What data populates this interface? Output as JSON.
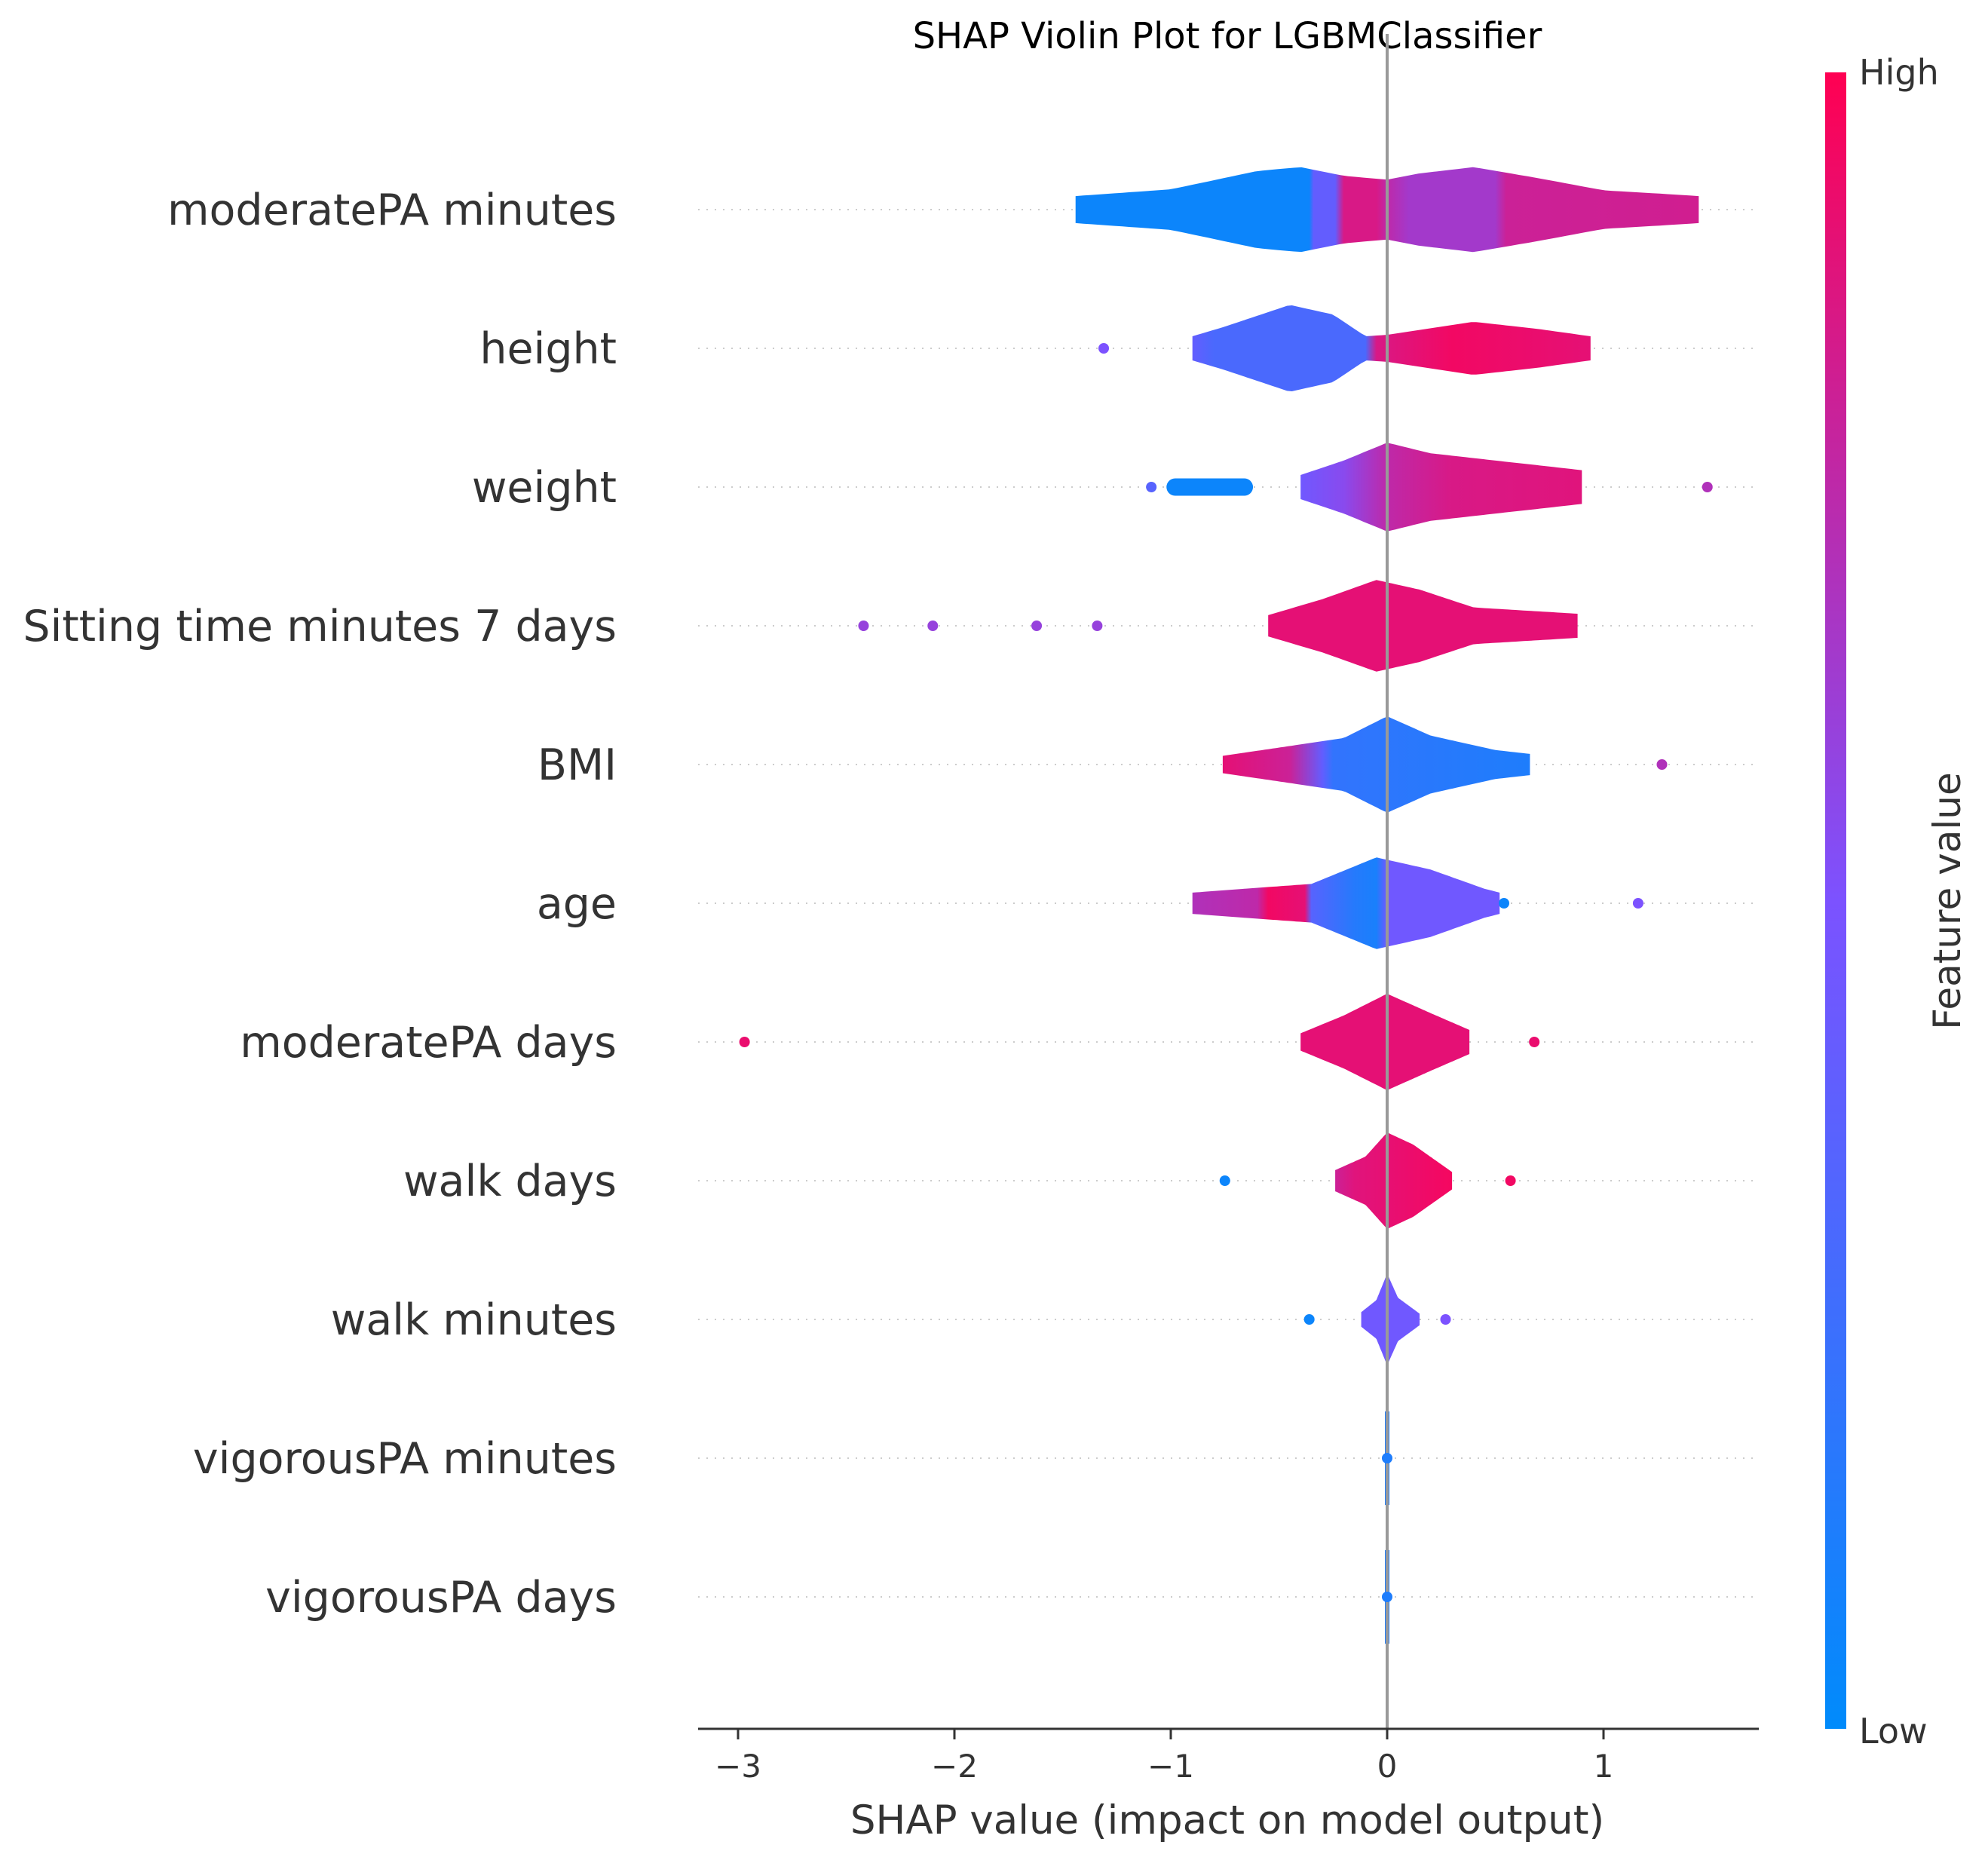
{
  "colors": {
    "low": "#008bfb",
    "mid": "#7c52ff",
    "high": "#ff0052",
    "grid": "#cccccc",
    "zero_line": "#999999",
    "axis": "#333333"
  },
  "chart_data": {
    "type": "violin",
    "title": "SHAP Violin Plot for LGBMClassifier",
    "xlabel": "SHAP value (impact on model output)",
    "xlim": [
      -3.2,
      1.7
    ],
    "xticks": [
      -3,
      -2,
      -1,
      0,
      1
    ],
    "xtick_labels": [
      "−3",
      "−2",
      "−1",
      "0",
      "1"
    ],
    "colorbar": {
      "label": "Feature value",
      "high_label": "High",
      "low_label": "Low"
    },
    "features": [
      {
        "name": "moderatePA minutes",
        "range": [
          -1.44,
          1.44
        ],
        "density": [
          [
            -1.44,
            0.28
          ],
          [
            -1.0,
            0.42
          ],
          [
            -0.6,
            0.8
          ],
          [
            -0.4,
            0.88
          ],
          [
            -0.2,
            0.7
          ],
          [
            0.0,
            0.62
          ],
          [
            0.15,
            0.75
          ],
          [
            0.4,
            0.88
          ],
          [
            0.7,
            0.65
          ],
          [
            1.0,
            0.4
          ],
          [
            1.3,
            0.32
          ],
          [
            1.44,
            0.28
          ]
        ],
        "color_stops": [
          [
            -1.44,
            0.05
          ],
          [
            -0.36,
            0.05
          ],
          [
            -0.34,
            0.4
          ],
          [
            -0.24,
            0.4
          ],
          [
            -0.2,
            0.85
          ],
          [
            -0.05,
            0.85
          ],
          [
            0.0,
            0.75
          ],
          [
            0.1,
            0.65
          ],
          [
            0.5,
            0.65
          ],
          [
            0.55,
            0.8
          ],
          [
            1.44,
            0.82
          ]
        ],
        "outliers": []
      },
      {
        "name": "height",
        "range": [
          -0.9,
          0.94
        ],
        "density": [
          [
            -0.9,
            0.25
          ],
          [
            -0.75,
            0.45
          ],
          [
            -0.45,
            0.9
          ],
          [
            -0.25,
            0.7
          ],
          [
            -0.1,
            0.25
          ],
          [
            0.0,
            0.28
          ],
          [
            0.4,
            0.55
          ],
          [
            0.7,
            0.4
          ],
          [
            0.94,
            0.25
          ]
        ],
        "color_stops": [
          [
            -0.9,
            0.4
          ],
          [
            -0.8,
            0.3
          ],
          [
            -0.1,
            0.3
          ],
          [
            -0.05,
            0.85
          ],
          [
            0.3,
            0.95
          ],
          [
            0.94,
            0.9
          ]
        ],
        "outliers": [
          {
            "x": -1.31,
            "c": 0.5
          }
        ]
      },
      {
        "name": "weight",
        "range": [
          -0.4,
          0.9
        ],
        "density": [
          [
            -0.4,
            0.25
          ],
          [
            -0.2,
            0.55
          ],
          [
            0.0,
            0.92
          ],
          [
            0.2,
            0.7
          ],
          [
            0.6,
            0.5
          ],
          [
            0.9,
            0.35
          ]
        ],
        "color_stops": [
          [
            -0.4,
            0.45
          ],
          [
            -0.2,
            0.55
          ],
          [
            0.0,
            0.75
          ],
          [
            0.3,
            0.85
          ],
          [
            0.9,
            0.88
          ]
        ],
        "extra_segment": {
          "range": [
            -1.02,
            -0.62
          ],
          "density": 0.18,
          "color": 0.05
        },
        "outliers": [
          {
            "x": -1.09,
            "c": 0.35
          },
          {
            "x": 1.48,
            "c": 0.7
          }
        ]
      },
      {
        "name": "Sitting time minutes 7 days",
        "range": [
          -0.55,
          0.88
        ],
        "density": [
          [
            -0.55,
            0.22
          ],
          [
            -0.3,
            0.55
          ],
          [
            -0.05,
            0.95
          ],
          [
            0.15,
            0.75
          ],
          [
            0.4,
            0.38
          ],
          [
            0.88,
            0.25
          ]
        ],
        "color_stops": [
          [
            -0.55,
            0.9
          ],
          [
            0.88,
            0.9
          ]
        ],
        "outliers": [
          {
            "x": -2.42,
            "c": 0.6
          },
          {
            "x": -2.1,
            "c": 0.6
          },
          {
            "x": -1.62,
            "c": 0.6
          },
          {
            "x": -1.34,
            "c": 0.6
          }
        ]
      },
      {
        "name": "BMI",
        "range": [
          -0.76,
          0.66
        ],
        "density": [
          [
            -0.76,
            0.18
          ],
          [
            -0.5,
            0.35
          ],
          [
            -0.2,
            0.55
          ],
          [
            0.0,
            1.0
          ],
          [
            0.2,
            0.6
          ],
          [
            0.5,
            0.3
          ],
          [
            0.66,
            0.22
          ]
        ],
        "color_stops": [
          [
            -0.76,
            0.9
          ],
          [
            -0.45,
            0.8
          ],
          [
            -0.3,
            0.4
          ],
          [
            -0.25,
            0.2
          ],
          [
            0.66,
            0.12
          ]
        ],
        "outliers": [
          {
            "x": 1.27,
            "c": 0.7
          }
        ]
      },
      {
        "name": "age",
        "range": [
          -0.9,
          0.52
        ],
        "density": [
          [
            -0.9,
            0.22
          ],
          [
            -0.6,
            0.32
          ],
          [
            -0.35,
            0.4
          ],
          [
            -0.05,
            0.95
          ],
          [
            0.2,
            0.7
          ],
          [
            0.45,
            0.3
          ],
          [
            0.52,
            0.22
          ]
        ],
        "color_stops": [
          [
            -0.9,
            0.7
          ],
          [
            -0.6,
            0.75
          ],
          [
            -0.55,
            0.95
          ],
          [
            -0.38,
            0.9
          ],
          [
            -0.35,
            0.35
          ],
          [
            -0.15,
            0.15
          ],
          [
            -0.05,
            0.1
          ],
          [
            0.0,
            0.45
          ],
          [
            0.52,
            0.45
          ]
        ],
        "outliers": [
          {
            "x": 0.54,
            "c": 0.05
          },
          {
            "x": 1.16,
            "c": 0.5
          }
        ]
      },
      {
        "name": "moderatePA days",
        "range": [
          -0.4,
          0.38
        ],
        "density": [
          [
            -0.4,
            0.18
          ],
          [
            -0.2,
            0.55
          ],
          [
            0.0,
            1.0
          ],
          [
            0.2,
            0.6
          ],
          [
            0.38,
            0.25
          ]
        ],
        "color_stops": [
          [
            -0.4,
            0.9
          ],
          [
            0.38,
            0.9
          ]
        ],
        "outliers": [
          {
            "x": -2.97,
            "c": 0.92
          },
          {
            "x": 0.68,
            "c": 0.92
          }
        ]
      },
      {
        "name": "walk days",
        "range": [
          -0.24,
          0.3
        ],
        "density": [
          [
            -0.24,
            0.22
          ],
          [
            -0.1,
            0.5
          ],
          [
            0.0,
            1.0
          ],
          [
            0.12,
            0.75
          ],
          [
            0.3,
            0.18
          ]
        ],
        "color_stops": [
          [
            -0.24,
            0.8
          ],
          [
            -0.15,
            0.88
          ],
          [
            0.3,
            0.96
          ]
        ],
        "outliers": [
          {
            "x": -0.75,
            "c": 0.05
          },
          {
            "x": 0.57,
            "c": 0.95
          }
        ]
      },
      {
        "name": "walk minutes",
        "range": [
          -0.12,
          0.15
        ],
        "density": [
          [
            -0.12,
            0.15
          ],
          [
            -0.05,
            0.4
          ],
          [
            0.0,
            0.95
          ],
          [
            0.05,
            0.45
          ],
          [
            0.15,
            0.12
          ]
        ],
        "color_stops": [
          [
            -0.12,
            0.45
          ],
          [
            0.15,
            0.45
          ]
        ],
        "outliers": [
          {
            "x": -0.36,
            "c": 0.05
          },
          {
            "x": 0.27,
            "c": 0.5
          }
        ]
      },
      {
        "name": "vigorousPA minutes",
        "range": [
          0,
          0
        ],
        "density": [],
        "color_stops": [
          [
            0,
            0.12
          ]
        ],
        "outliers": [
          {
            "x": 0.0,
            "c": 0.12
          }
        ]
      },
      {
        "name": "vigorousPA days",
        "range": [
          0,
          0
        ],
        "density": [],
        "color_stops": [
          [
            0,
            0.12
          ]
        ],
        "outliers": [
          {
            "x": 0.0,
            "c": 0.12
          }
        ]
      }
    ]
  }
}
